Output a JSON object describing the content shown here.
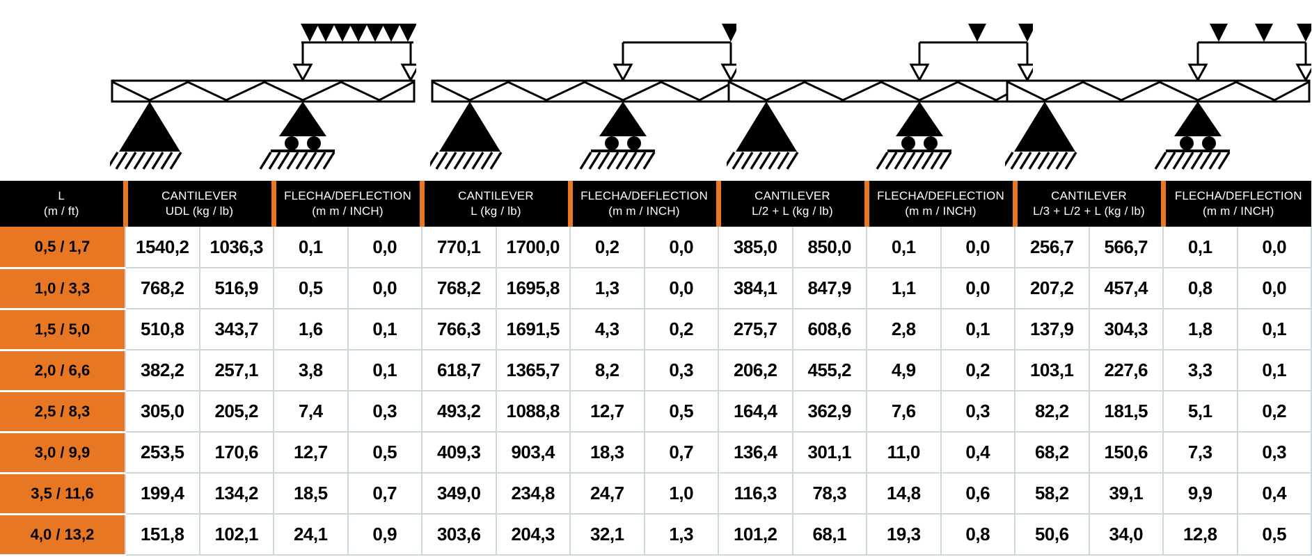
{
  "colors": {
    "accent": "#E87724",
    "header_bg": "#000000",
    "header_text": "#FFFFFF",
    "grid_line": "#CCD8DB",
    "value_text": "#000000"
  },
  "diagrams": [
    {
      "id": "cantilever-udl",
      "description": "truss beam on pinned + roller supports, uniformly distributed load over cantilever"
    },
    {
      "id": "cantilever-point-L",
      "description": "truss beam on pinned + roller supports, point load at cantilever tip L"
    },
    {
      "id": "cantilever-point-L2-L",
      "description": "truss beam on pinned + roller supports, point loads at L/2 and L"
    },
    {
      "id": "cantilever-point-L3-L2-L",
      "description": "truss beam on pinned + roller supports, point loads at L/3, L/2 and L"
    }
  ],
  "header_groups": [
    {
      "line1": "L",
      "line2": "(m / ft)"
    },
    {
      "line1": "CANTILEVER",
      "line2": "UDL (kg / lb)"
    },
    {
      "line1": "FLECHA/DEFLECTION",
      "line2": "(m m / INCH)"
    },
    {
      "line1": "CANTILEVER",
      "line2": "L (kg / lb)"
    },
    {
      "line1": "FLECHA/DEFLECTION",
      "line2": "(m m / INCH)"
    },
    {
      "line1": "CANTILEVER",
      "line2": "L/2 + L (kg / lb)"
    },
    {
      "line1": "FLECHA/DEFLECTION",
      "line2": "(m m / INCH)"
    },
    {
      "line1": "CANTILEVER",
      "line2": "L/3 + L/2 + L (kg / lb)"
    },
    {
      "line1": "FLECHA/DEFLECTION",
      "line2": "(m m / INCH)"
    }
  ],
  "rows": [
    {
      "length": "0,5 / 1,7",
      "values": [
        "1540,2",
        "1036,3",
        "0,1",
        "0,0",
        "770,1",
        "1700,0",
        "0,2",
        "0,0",
        "385,0",
        "850,0",
        "0,1",
        "0,0",
        "256,7",
        "566,7",
        "0,1",
        "0,0"
      ]
    },
    {
      "length": "1,0 / 3,3",
      "values": [
        "768,2",
        "516,9",
        "0,5",
        "0,0",
        "768,2",
        "1695,8",
        "1,3",
        "0,0",
        "384,1",
        "847,9",
        "1,1",
        "0,0",
        "207,2",
        "457,4",
        "0,8",
        "0,0"
      ]
    },
    {
      "length": "1,5 / 5,0",
      "values": [
        "510,8",
        "343,7",
        "1,6",
        "0,1",
        "766,3",
        "1691,5",
        "4,3",
        "0,2",
        "275,7",
        "608,6",
        "2,8",
        "0,1",
        "137,9",
        "304,3",
        "1,8",
        "0,1"
      ]
    },
    {
      "length": "2,0 / 6,6",
      "values": [
        "382,2",
        "257,1",
        "3,8",
        "0,1",
        "618,7",
        "1365,7",
        "8,2",
        "0,3",
        "206,2",
        "455,2",
        "4,9",
        "0,2",
        "103,1",
        "227,6",
        "3,3",
        "0,1"
      ]
    },
    {
      "length": "2,5 / 8,3",
      "values": [
        "305,0",
        "205,2",
        "7,4",
        "0,3",
        "493,2",
        "1088,8",
        "12,7",
        "0,5",
        "164,4",
        "362,9",
        "7,6",
        "0,3",
        "82,2",
        "181,5",
        "5,1",
        "0,2"
      ]
    },
    {
      "length": "3,0 / 9,9",
      "values": [
        "253,5",
        "170,6",
        "12,7",
        "0,5",
        "409,3",
        "903,4",
        "18,3",
        "0,7",
        "136,4",
        "301,1",
        "11,0",
        "0,4",
        "68,2",
        "150,6",
        "7,3",
        "0,3"
      ]
    },
    {
      "length": "3,5 / 11,6",
      "values": [
        "199,4",
        "134,2",
        "18,5",
        "0,7",
        "349,0",
        "234,8",
        "24,7",
        "1,0",
        "116,3",
        "78,3",
        "14,8",
        "0,6",
        "58,2",
        "39,1",
        "9,9",
        "0,4"
      ]
    },
    {
      "length": "4,0 / 13,2",
      "values": [
        "151,8",
        "102,1",
        "24,1",
        "0,9",
        "303,6",
        "204,3",
        "32,1",
        "1,3",
        "101,2",
        "68,1",
        "19,3",
        "0,8",
        "50,6",
        "34,0",
        "12,8",
        "0,5"
      ]
    }
  ]
}
